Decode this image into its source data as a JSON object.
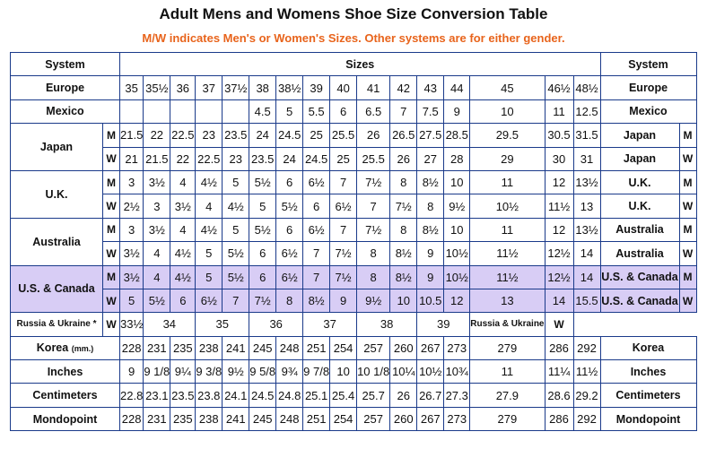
{
  "title": "Adult Mens and Womens Shoe Size Conversion Table",
  "subtitle": "M/W indicates Men's or Women's Sizes. Other systems are for either gender.",
  "colors": {
    "subtitle": "#e8641c",
    "highlight": "#d8cdf5",
    "border": "#1a3a8a"
  },
  "header": {
    "system_left": "System",
    "sizes": "Sizes",
    "system_right": "System"
  },
  "rows": [
    {
      "type": "single",
      "label": "Europe",
      "right": "Europe",
      "values": [
        "35",
        "35½",
        "36",
        "37",
        "37½",
        "38",
        "38½",
        "39",
        "40",
        "41",
        "42",
        "43",
        "44",
        "45",
        "46½",
        "48½"
      ]
    },
    {
      "type": "single",
      "label": "Mexico",
      "right": "Mexico",
      "values": [
        "",
        "",
        "",
        "",
        "",
        "4.5",
        "5",
        "5.5",
        "6",
        "6.5",
        "7",
        "7.5",
        "9",
        "10",
        "11",
        "12.5"
      ]
    },
    {
      "type": "pair",
      "label": "Japan",
      "m": {
        "gender": "M",
        "right": "Japan",
        "values": [
          "21.5",
          "22",
          "22.5",
          "23",
          "23.5",
          "24",
          "24.5",
          "25",
          "25.5",
          "26",
          "26.5",
          "27.5",
          "28.5",
          "29.5",
          "30.5",
          "31.5"
        ]
      },
      "w": {
        "gender": "W",
        "right": "Japan",
        "values": [
          "21",
          "21.5",
          "22",
          "22.5",
          "23",
          "23.5",
          "24",
          "24.5",
          "25",
          "25.5",
          "26",
          "27",
          "28",
          "29",
          "30",
          "31"
        ]
      }
    },
    {
      "type": "pair",
      "label": "U.K.",
      "m": {
        "gender": "M",
        "right": "U.K.",
        "values": [
          "3",
          "3½",
          "4",
          "4½",
          "5",
          "5½",
          "6",
          "6½",
          "7",
          "7½",
          "8",
          "8½",
          "10",
          "11",
          "12",
          "13½"
        ]
      },
      "w": {
        "gender": "W",
        "right": "U.K.",
        "values": [
          "2½",
          "3",
          "3½",
          "4",
          "4½",
          "5",
          "5½",
          "6",
          "6½",
          "7",
          "7½",
          "8",
          "9½",
          "10½",
          "11½",
          "13"
        ]
      }
    },
    {
      "type": "pair",
      "label": "Australia",
      "m": {
        "gender": "M",
        "right": "Australia",
        "values": [
          "3",
          "3½",
          "4",
          "4½",
          "5",
          "5½",
          "6",
          "6½",
          "7",
          "7½",
          "8",
          "8½",
          "10",
          "11",
          "12",
          "13½"
        ]
      },
      "w": {
        "gender": "W",
        "right": "Australia",
        "values": [
          "3½",
          "4",
          "4½",
          "5",
          "5½",
          "6",
          "6½",
          "7",
          "7½",
          "8",
          "8½",
          "9",
          "10½",
          "11½",
          "12½",
          "14"
        ]
      }
    },
    {
      "type": "pair",
      "label": "U.S. & Canada",
      "highlight": true,
      "m": {
        "gender": "M",
        "right": "U.S. & Canada",
        "values": [
          "3½",
          "4",
          "4½",
          "5",
          "5½",
          "6",
          "6½",
          "7",
          "7½",
          "8",
          "8½",
          "9",
          "10½",
          "11½",
          "12½",
          "14"
        ]
      },
      "w": {
        "gender": "W",
        "right": "U.S. & Canada",
        "values": [
          "5",
          "5½",
          "6",
          "6½",
          "7",
          "7½",
          "8",
          "8½",
          "9",
          "9½",
          "10",
          "10.5",
          "12",
          "13",
          "14",
          "15.5"
        ]
      }
    },
    {
      "type": "russia",
      "label": "Russia & Ukraine *",
      "gender": "W",
      "right": "Russia & Ukraine",
      "right_gender": "W",
      "values": [
        "33½",
        "34",
        "35",
        "36",
        "37",
        "38",
        "39"
      ]
    },
    {
      "type": "single",
      "label": "Korea",
      "unit": "(mm.)",
      "right": "Korea",
      "values": [
        "228",
        "231",
        "235",
        "238",
        "241",
        "245",
        "248",
        "251",
        "254",
        "257",
        "260",
        "267",
        "273",
        "279",
        "286",
        "292"
      ]
    },
    {
      "type": "single",
      "label": "Inches",
      "right": "Inches",
      "values": [
        "9",
        "9 1/8",
        "9¼",
        "9 3/8",
        "9½",
        "9 5/8",
        "9¾",
        "9 7/8",
        "10",
        "10 1/8",
        "10¼",
        "10½",
        "10¾",
        "11",
        "11¼",
        "11½"
      ]
    },
    {
      "type": "single",
      "label": "Centimeters",
      "right": "Centimeters",
      "values": [
        "22.8",
        "23.1",
        "23.5",
        "23.8",
        "24.1",
        "24.5",
        "24.8",
        "25.1",
        "25.4",
        "25.7",
        "26",
        "26.7",
        "27.3",
        "27.9",
        "28.6",
        "29.2"
      ]
    },
    {
      "type": "single",
      "label": "Mondopoint",
      "right": "Mondopoint",
      "values": [
        "228",
        "231",
        "235",
        "238",
        "241",
        "245",
        "248",
        "251",
        "254",
        "257",
        "260",
        "267",
        "273",
        "279",
        "286",
        "292"
      ]
    }
  ]
}
